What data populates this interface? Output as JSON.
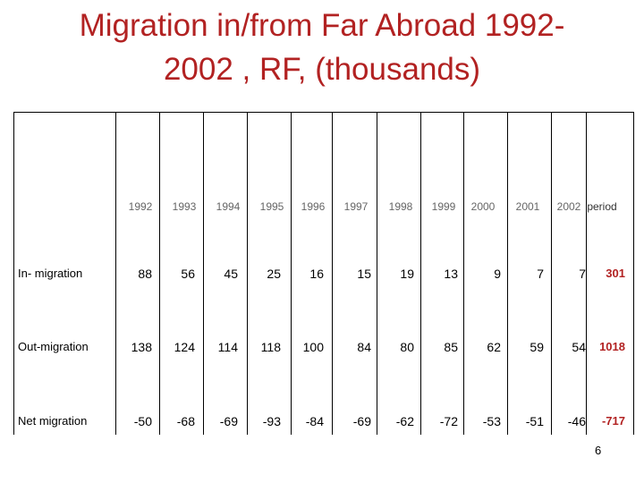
{
  "title": {
    "line1": "Migration in/from Far Abroad 1992-",
    "line2": "2002 , RF, (thousands)"
  },
  "table": {
    "years": [
      "1992",
      "1993",
      "1994",
      "1995",
      "1996",
      "1997",
      "1998",
      "1999",
      "2000",
      "2001",
      "2002"
    ],
    "period_label": "period",
    "rows": [
      {
        "label": "In- migration",
        "values": [
          "88",
          "56",
          "45",
          "25",
          "16",
          "15",
          "19",
          "13",
          "9",
          "7",
          "7"
        ],
        "total": "301"
      },
      {
        "label": "Out-migration",
        "values": [
          "138",
          "124",
          "114",
          "118",
          "100",
          "84",
          "80",
          "85",
          "62",
          "59",
          "54"
        ],
        "total": "1018"
      },
      {
        "label": "Net migration",
        "values": [
          "-50",
          "-68",
          "-69",
          "-93",
          "-84",
          "-69",
          "-62",
          "-72",
          "-53",
          "-51",
          "-46"
        ],
        "total": "-717"
      }
    ]
  },
  "page_number": "6",
  "colors": {
    "title": "#b22222",
    "total": "#b22222"
  }
}
